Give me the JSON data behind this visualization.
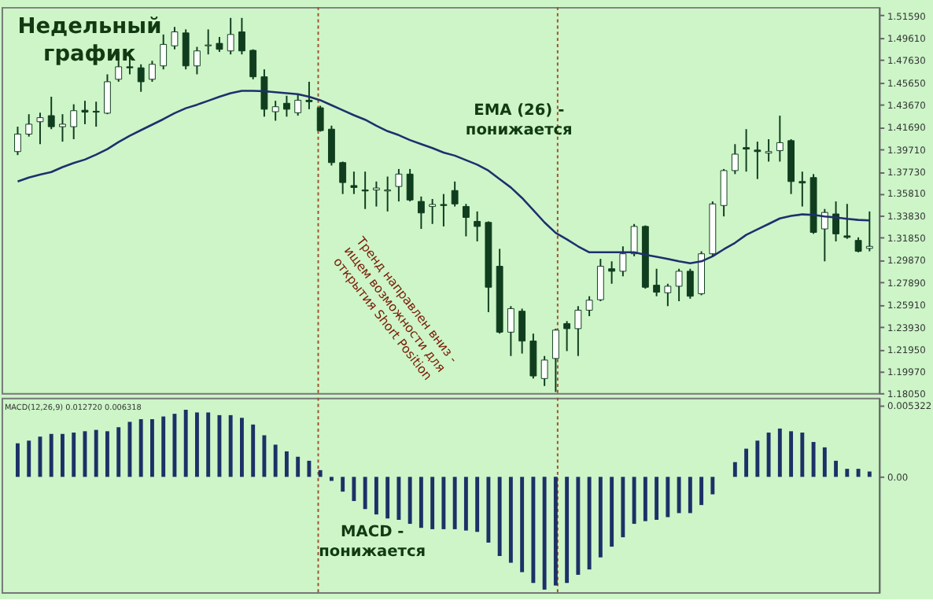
{
  "chart_data": [
    {
      "type": "candlestick",
      "title": "Недельный график",
      "categories": [
        null,
        null,
        null,
        null,
        null,
        null,
        null,
        null,
        null,
        null,
        null,
        null,
        null,
        null,
        null,
        null,
        null,
        null,
        null,
        null,
        null,
        null,
        null,
        null,
        null,
        null,
        null,
        null,
        null,
        null,
        null,
        null,
        null,
        null,
        null,
        null,
        null,
        null,
        null,
        null,
        null,
        null,
        null,
        null,
        null,
        null,
        null,
        null,
        null,
        null,
        null,
        null,
        null,
        null,
        null,
        null,
        null,
        null,
        null,
        null,
        null,
        null,
        null,
        null,
        null,
        null,
        null,
        null,
        null,
        null,
        null,
        null,
        null,
        null,
        null,
        null,
        null
      ],
      "ohlc": [
        [
          1.395,
          1.4171,
          1.3919,
          1.4105
        ],
        [
          1.4105,
          1.4282,
          1.4083,
          1.4193
        ],
        [
          1.4215,
          1.4295,
          1.4016,
          1.4251
        ],
        [
          1.4269,
          1.4437,
          1.4149,
          1.4171
        ],
        [
          1.4171,
          1.4282,
          1.4038,
          1.4193
        ],
        [
          1.4171,
          1.437,
          1.406,
          1.4313
        ],
        [
          1.4317,
          1.4401,
          1.4193,
          1.43
        ],
        [
          1.4308,
          1.4393,
          1.4171,
          1.43
        ],
        [
          1.4291,
          1.4636,
          1.4282,
          1.457
        ],
        [
          1.4592,
          1.4835,
          1.457,
          1.4703
        ],
        [
          1.4703,
          1.4835,
          1.4636,
          1.4694
        ],
        [
          1.4694,
          1.4725,
          1.4481,
          1.457
        ],
        [
          1.4592,
          1.4756,
          1.457,
          1.4725
        ],
        [
          1.4711,
          1.499,
          1.468,
          1.4902
        ],
        [
          1.4889,
          1.5057,
          1.4858,
          1.5013
        ],
        [
          1.5004,
          1.5035,
          1.468,
          1.4711
        ],
        [
          1.4711,
          1.488,
          1.4636,
          1.4844
        ],
        [
          1.4889,
          1.5035,
          1.4813,
          1.4897
        ],
        [
          1.4911,
          1.4968,
          1.4835,
          1.4858
        ],
        [
          1.4844,
          1.5137,
          1.4813,
          1.499
        ],
        [
          1.5013,
          1.5137,
          1.4813,
          1.4844
        ],
        [
          1.4849,
          1.4858,
          1.4592,
          1.4614
        ],
        [
          1.4614,
          1.468,
          1.426,
          1.4326
        ],
        [
          1.4304,
          1.4401,
          1.4224,
          1.4348
        ],
        [
          1.4379,
          1.4446,
          1.426,
          1.4326
        ],
        [
          1.4295,
          1.4459,
          1.4269,
          1.4406
        ],
        [
          1.4406,
          1.457,
          1.4326,
          1.4393
        ],
        [
          1.4339,
          1.4357,
          1.4127,
          1.4136
        ],
        [
          1.4149,
          1.418,
          1.3826,
          1.3852
        ],
        [
          1.3852,
          1.3861,
          1.3573,
          1.3675
        ],
        [
          1.3648,
          1.3772,
          1.3573,
          1.3631
        ],
        [
          1.3609,
          1.3772,
          1.344,
          1.36
        ],
        [
          1.3609,
          1.3684,
          1.3462,
          1.3626
        ],
        [
          1.36,
          1.3728,
          1.3418,
          1.3609
        ],
        [
          1.364,
          1.3795,
          1.3507,
          1.375
        ],
        [
          1.375,
          1.3795,
          1.3507,
          1.352
        ],
        [
          1.3507,
          1.3551,
          1.3263,
          1.3405
        ],
        [
          1.3462,
          1.3529,
          1.3307,
          1.348
        ],
        [
          1.348,
          1.3573,
          1.3285,
          1.3471
        ],
        [
          1.3604,
          1.3684,
          1.3462,
          1.3485
        ],
        [
          1.3462,
          1.3485,
          1.3197,
          1.3365
        ],
        [
          1.333,
          1.3418,
          1.3152,
          1.3285
        ],
        [
          1.3321,
          1.333,
          1.2524,
          1.2745
        ],
        [
          1.2931,
          1.3086,
          1.2333,
          1.2346
        ],
        [
          1.2346,
          1.2577,
          1.2134,
          1.2555
        ],
        [
          1.2532,
          1.2555,
          1.2156,
          1.2267
        ],
        [
          1.2267,
          1.2333,
          1.1934,
          1.1957
        ],
        [
          1.1934,
          1.2134,
          1.1868,
          1.2098
        ],
        [
          1.2112,
          1.2377,
          1.1815,
          1.2364
        ],
        [
          1.2422,
          1.2444,
          1.2178,
          1.2377
        ],
        [
          1.2377,
          1.2577,
          1.2134,
          1.2541
        ],
        [
          1.2541,
          1.2665,
          1.2488,
          1.263
        ],
        [
          1.2634,
          1.2997,
          1.2621,
          1.2931
        ],
        [
          1.2909,
          1.2975,
          1.2776,
          1.2887
        ],
        [
          1.2887,
          1.3108,
          1.2842,
          1.3042
        ],
        [
          1.3042,
          1.3307,
          1.302,
          1.3285
        ],
        [
          1.3285,
          1.3294,
          1.2732,
          1.2745
        ],
        [
          1.2763,
          1.2909,
          1.2665,
          1.2701
        ],
        [
          1.2696,
          1.2776,
          1.2577,
          1.2754
        ],
        [
          1.2754,
          1.2909,
          1.2621,
          1.2887
        ],
        [
          1.2887,
          1.2909,
          1.2643,
          1.2665
        ],
        [
          1.2687,
          1.3064,
          1.2674,
          1.3042
        ],
        [
          1.3042,
          1.3507,
          1.302,
          1.3485
        ],
        [
          1.3471,
          1.3795,
          1.3374,
          1.3781
        ],
        [
          1.3781,
          1.4016,
          1.375,
          1.3927
        ],
        [
          1.3985,
          1.4149,
          1.3772,
          1.3972
        ],
        [
          1.3963,
          1.4038,
          1.3706,
          1.395
        ],
        [
          1.3936,
          1.406,
          1.3861,
          1.395
        ],
        [
          1.3958,
          1.4269,
          1.3861,
          1.4029
        ],
        [
          1.4047,
          1.406,
          1.3573,
          1.3684
        ],
        [
          1.3684,
          1.3772,
          1.3462,
          1.3671
        ],
        [
          1.3719,
          1.375,
          1.3219,
          1.3232
        ],
        [
          1.3263,
          1.344,
          1.2975,
          1.3409
        ],
        [
          1.3396,
          1.3507,
          1.3152,
          1.3219
        ],
        [
          1.3201,
          1.3485,
          1.3175,
          1.3188
        ],
        [
          1.3161,
          1.3188,
          1.3055,
          1.3064
        ],
        [
          1.309,
          1.3418,
          1.3064,
          1.3108
        ]
      ],
      "series": [
        {
          "type": "line",
          "color": "#1f2f6e",
          "values": [
            1.3684,
            1.3719,
            1.3746,
            1.3768,
            1.3812,
            1.3848,
            1.3879,
            1.3923,
            1.3972,
            1.4034,
            1.4091,
            1.414,
            1.4189,
            1.4238,
            1.4291,
            1.4335,
            1.4366,
            1.4401,
            1.4437,
            1.4468,
            1.449,
            1.449,
            1.4486,
            1.4477,
            1.4468,
            1.4459,
            1.4437,
            1.4406,
            1.4362,
            1.4317,
            1.4273,
            1.4233,
            1.418,
            1.4131,
            1.4096,
            1.4052,
            1.4016,
            1.3981,
            1.3941,
            1.3914,
            1.3874,
            1.3834,
            1.3781,
            1.3706,
            1.3631,
            1.3538,
            1.3431,
            1.3321,
            1.3228,
            1.317,
            1.3108,
            1.3055,
            1.3055,
            1.3055,
            1.3055,
            1.3055,
            1.3033,
            1.3015,
            1.2997,
            1.2975,
            1.2958,
            1.2975,
            1.302,
            1.3082,
            1.3139,
            1.321,
            1.3259,
            1.3307,
            1.3356,
            1.3378,
            1.3392,
            1.3387,
            1.3374,
            1.3365,
            1.3352,
            1.3343,
            1.3338
          ]
        }
      ],
      "ylim": [
        1.1805,
        1.5234
      ],
      "yticks": [
        {
          "value": 1.5159,
          "label": "1.51590"
        },
        {
          "value": 1.4961,
          "label": "1.49610"
        },
        {
          "value": 1.4763,
          "label": "1.47630"
        },
        {
          "value": 1.4565,
          "label": "1.45650"
        },
        {
          "value": 1.4367,
          "label": "1.43670"
        },
        {
          "value": 1.4169,
          "label": "1.41690"
        },
        {
          "value": 1.3971,
          "label": "1.39710"
        },
        {
          "value": 1.3773,
          "label": "1.37730"
        },
        {
          "value": 1.3581,
          "label": "1.35810"
        },
        {
          "value": 1.3383,
          "label": "1.33830"
        },
        {
          "value": 1.3185,
          "label": "1.31850"
        },
        {
          "value": 1.2987,
          "label": "1.29870"
        },
        {
          "value": 1.2789,
          "label": "1.27890"
        },
        {
          "value": 1.2591,
          "label": "1.25910"
        },
        {
          "value": 1.2393,
          "label": "1.23930"
        },
        {
          "value": 1.2195,
          "label": "1.21950"
        },
        {
          "value": 1.1997,
          "label": "1.19970"
        },
        {
          "value": 1.1805,
          "label": "1.18050"
        }
      ],
      "tick_labels": "y",
      "annotations": [
        "EMA (26) - понижается",
        "Тренд направлен вниз - ищем возможности для открытия Short Position"
      ]
    },
    {
      "type": "bar",
      "color": "#1c3166",
      "categories": [
        null,
        null,
        null,
        null,
        null,
        null,
        null,
        null,
        null,
        null,
        null,
        null,
        null,
        null,
        null,
        null,
        null,
        null,
        null,
        null,
        null,
        null,
        null,
        null,
        null,
        null,
        null,
        null,
        null,
        null,
        null,
        null,
        null,
        null,
        null,
        null,
        null,
        null,
        null,
        null,
        null,
        null,
        null,
        null,
        null,
        null,
        null,
        null,
        null,
        null,
        null,
        null,
        null,
        null,
        null,
        null,
        null,
        null,
        null,
        null,
        null,
        null,
        null,
        null,
        null,
        null,
        null,
        null,
        null,
        null,
        null,
        null,
        null,
        null,
        null,
        null,
        null
      ],
      "values": [
        0.0025,
        0.0027,
        0.003,
        0.0032,
        0.0032,
        0.0033,
        0.0034,
        0.0035,
        0.0034,
        0.0037,
        0.0041,
        0.0043,
        0.0043,
        0.0045,
        0.0047,
        0.005,
        0.0048,
        0.0048,
        0.0046,
        0.0046,
        0.0044,
        0.0039,
        0.0031,
        0.0024,
        0.0019,
        0.0015,
        0.0012,
        0.0005,
        -0.0003,
        -0.0011,
        -0.0018,
        -0.0024,
        -0.0028,
        -0.0031,
        -0.0032,
        -0.0035,
        -0.0038,
        -0.0039,
        -0.0039,
        -0.0039,
        -0.004,
        -0.0041,
        -0.0049,
        -0.0059,
        -0.0064,
        -0.0071,
        -0.0079,
        -0.0084,
        -0.0081,
        -0.0079,
        -0.0073,
        -0.0069,
        -0.006,
        -0.0052,
        -0.0045,
        -0.0035,
        -0.0033,
        -0.0032,
        -0.003,
        -0.0027,
        -0.0027,
        -0.0021,
        -0.0013,
        0,
        0.0011,
        0.0021,
        0.0027,
        0.0033,
        0.0036,
        0.0034,
        0.0033,
        0.0026,
        0.0022,
        0.0012,
        0.0006,
        0.0006,
        0.0004
      ],
      "ylim": [
        -0.0086,
        0.0059
      ],
      "yticks": [
        0.005322,
        {
          "value": 0,
          "label": "0.00"
        }
      ],
      "tick_labels": "y",
      "annotations": [
        "MACD(12,26,9) 0.012720 0.006318",
        "MACD - понижается"
      ]
    }
  ]
}
